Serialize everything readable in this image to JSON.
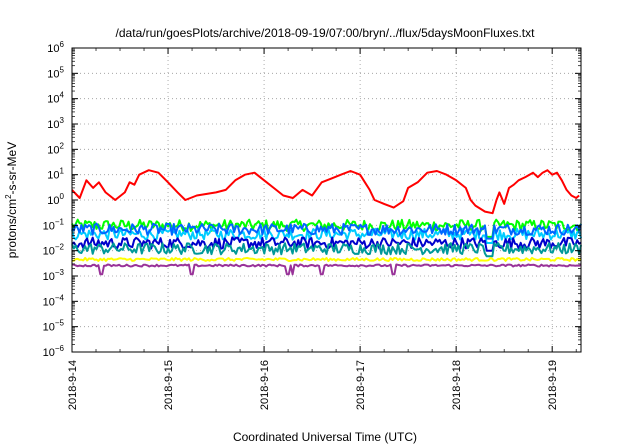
{
  "chart_data": {
    "type": "line",
    "title": "/data/run/goesPlots/archive/2018-09-19/07:00/bryn/../flux/5daysMoonFluxes.txt",
    "xlabel": "Coordinated Universal Time (UTC)",
    "ylabel": "protons/cm²-s-sr-MeV",
    "ylabel_base": "protons/cm",
    "ylabel_sup": "2",
    "ylabel_rest": "-s-sr-MeV",
    "yscale": "log",
    "ylim_exp": [
      -6,
      6
    ],
    "y_tick_exponents": [
      -6,
      -5,
      -4,
      -3,
      -2,
      -1,
      0,
      1,
      2,
      3,
      4,
      5,
      6
    ],
    "xlim_days": [
      0,
      5.3
    ],
    "x_ticks": [
      {
        "day": 0,
        "label": "2018-9-14"
      },
      {
        "day": 1,
        "label": "2018-9-15"
      },
      {
        "day": 2,
        "label": "2018-9-16"
      },
      {
        "day": 3,
        "label": "2018-9-17"
      },
      {
        "day": 4,
        "label": "2018-9-18"
      },
      {
        "day": 5,
        "label": "2018-9-19"
      }
    ],
    "grid": true,
    "series": [
      {
        "color": "#ff0000",
        "points": [
          [
            0,
            2.5
          ],
          [
            0.08,
            1.2
          ],
          [
            0.15,
            6
          ],
          [
            0.22,
            3
          ],
          [
            0.28,
            5
          ],
          [
            0.35,
            2
          ],
          [
            0.45,
            1.0
          ],
          [
            0.55,
            2
          ],
          [
            0.6,
            5
          ],
          [
            0.65,
            4
          ],
          [
            0.7,
            10
          ],
          [
            0.8,
            15
          ],
          [
            0.9,
            12
          ],
          [
            1.0,
            5
          ],
          [
            1.1,
            2
          ],
          [
            1.18,
            1.0
          ],
          [
            1.3,
            1.5
          ],
          [
            1.5,
            2
          ],
          [
            1.6,
            2.5
          ],
          [
            1.7,
            6
          ],
          [
            1.8,
            10
          ],
          [
            1.9,
            12
          ],
          [
            2.0,
            6
          ],
          [
            2.1,
            3
          ],
          [
            2.2,
            1.5
          ],
          [
            2.3,
            1.2
          ],
          [
            2.4,
            2.5
          ],
          [
            2.5,
            1.5
          ],
          [
            2.6,
            5
          ],
          [
            2.7,
            7
          ],
          [
            2.8,
            10
          ],
          [
            2.9,
            14
          ],
          [
            3.0,
            10
          ],
          [
            3.05,
            5
          ],
          [
            3.1,
            2.5
          ],
          [
            3.15,
            1.0
          ],
          [
            3.25,
            0.7
          ],
          [
            3.35,
            0.5
          ],
          [
            3.45,
            0.9
          ],
          [
            3.5,
            3
          ],
          [
            3.6,
            5
          ],
          [
            3.7,
            12
          ],
          [
            3.8,
            14
          ],
          [
            3.9,
            10
          ],
          [
            4.0,
            6
          ],
          [
            4.1,
            3
          ],
          [
            4.15,
            1.0
          ],
          [
            4.2,
            0.6
          ],
          [
            4.3,
            0.35
          ],
          [
            4.38,
            0.3
          ],
          [
            4.42,
            1.0
          ],
          [
            4.45,
            2
          ],
          [
            4.5,
            0.7
          ],
          [
            4.55,
            3
          ],
          [
            4.6,
            4
          ],
          [
            4.65,
            6
          ],
          [
            4.72,
            8
          ],
          [
            4.8,
            12
          ],
          [
            4.85,
            8
          ],
          [
            4.9,
            12
          ],
          [
            4.95,
            15
          ],
          [
            5.0,
            10
          ],
          [
            5.05,
            12
          ],
          [
            5.1,
            6
          ],
          [
            5.15,
            2.5
          ],
          [
            5.2,
            1.5
          ],
          [
            5.25,
            1.2
          ],
          [
            5.28,
            1.5
          ]
        ]
      },
      {
        "color": "#00ff00",
        "base": 0.1,
        "dip_at": 4.35,
        "dip_to": 0.035
      },
      {
        "color": "#00ccff",
        "base": 0.045,
        "dip_at": 4.35,
        "dip_to": 0.02
      },
      {
        "color": "#0066ff",
        "base": 0.07,
        "dip_at": 4.35,
        "dip_to": 0.03
      },
      {
        "color": "#0000cc",
        "base": 0.02,
        "dip_at": 4.35,
        "dip_to": 0.01
      },
      {
        "color": "#009999",
        "base": 0.012,
        "dip_at": 4.35,
        "dip_to": 0.006
      },
      {
        "color": "#ffff00",
        "base": 0.0045
      },
      {
        "color": "#993399",
        "base": 0.0026,
        "dips": [
          0.3,
          1.25,
          2.25,
          2.3,
          2.6,
          3.35
        ]
      }
    ]
  }
}
